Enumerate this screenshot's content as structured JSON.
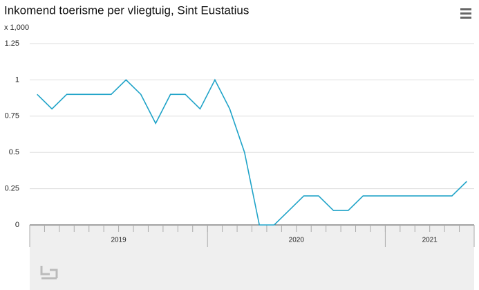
{
  "chart_data": {
    "type": "line",
    "title": "Inkomend toerisme per vliegtuig, Sint Eustatius",
    "unit_label": "x 1,000",
    "categories": [
      null,
      null,
      null,
      null,
      null,
      null,
      null,
      null,
      null,
      null,
      null,
      null,
      null,
      null,
      null,
      null,
      null,
      null,
      null,
      null,
      null,
      null,
      null,
      null,
      null,
      null,
      null,
      null,
      null,
      null
    ],
    "groups": [
      {
        "label": "2019",
        "months": 12
      },
      {
        "label": "2020",
        "months": 12
      },
      {
        "label": "2021",
        "months": 6
      }
    ],
    "series": [
      {
        "color": "#1fa3c8",
        "values": [
          0.9,
          0.8,
          0.9,
          0.9,
          0.9,
          0.9,
          1,
          0.9,
          0.7,
          0.9,
          0.9,
          0.8,
          1,
          0.8,
          0.5,
          0,
          0,
          0.1,
          0.2,
          0.2,
          0.1,
          0.1,
          0.2,
          0.2,
          0.2,
          0.2,
          0.2,
          0.2,
          0.2,
          0.3
        ]
      }
    ],
    "ylim": [
      0,
      1.25
    ],
    "yticks": [
      0,
      0.25,
      0.5,
      0.75,
      1,
      1.25
    ],
    "grid": true
  }
}
